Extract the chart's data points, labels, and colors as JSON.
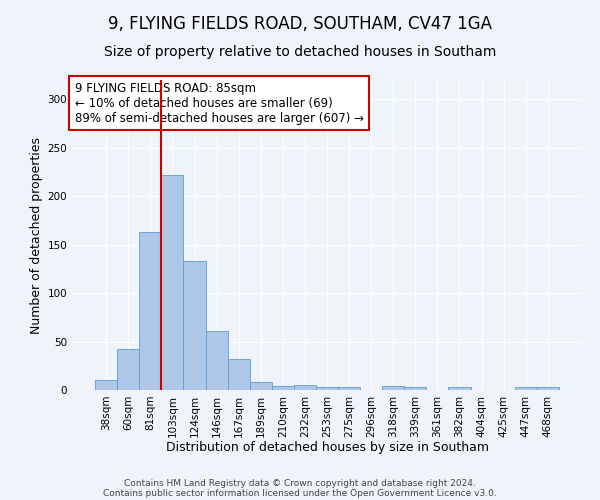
{
  "title1": "9, FLYING FIELDS ROAD, SOUTHAM, CV47 1GA",
  "title2": "Size of property relative to detached houses in Southam",
  "xlabel": "Distribution of detached houses by size in Southam",
  "ylabel": "Number of detached properties",
  "categories": [
    "38sqm",
    "60sqm",
    "81sqm",
    "103sqm",
    "124sqm",
    "146sqm",
    "167sqm",
    "189sqm",
    "210sqm",
    "232sqm",
    "253sqm",
    "275sqm",
    "296sqm",
    "318sqm",
    "339sqm",
    "361sqm",
    "382sqm",
    "404sqm",
    "425sqm",
    "447sqm",
    "468sqm"
  ],
  "values": [
    10,
    42,
    163,
    222,
    133,
    61,
    32,
    8,
    4,
    5,
    3,
    3,
    0,
    4,
    3,
    0,
    3,
    0,
    0,
    3,
    3
  ],
  "bar_color": "#aec6e8",
  "bar_edge_color": "#5a9fd4",
  "vline_x": 2.5,
  "vline_color": "#cc0000",
  "annotation_line1": "9 FLYING FIELDS ROAD: 85sqm",
  "annotation_line2": "← 10% of detached houses are smaller (69)",
  "annotation_line3": "89% of semi-detached houses are larger (607) →",
  "annotation_box_color": "white",
  "annotation_box_edge": "#cc0000",
  "ylim": [
    0,
    320
  ],
  "yticks": [
    0,
    50,
    100,
    150,
    200,
    250,
    300
  ],
  "footer1": "Contains HM Land Registry data © Crown copyright and database right 2024.",
  "footer2": "Contains public sector information licensed under the Open Government Licence v3.0.",
  "bg_color": "#f0f4fa",
  "grid_color": "white",
  "title1_fontsize": 12,
  "title2_fontsize": 10,
  "xlabel_fontsize": 9,
  "ylabel_fontsize": 9,
  "tick_fontsize": 7.5,
  "annotation_fontsize": 8.5,
  "footer_fontsize": 6.5
}
